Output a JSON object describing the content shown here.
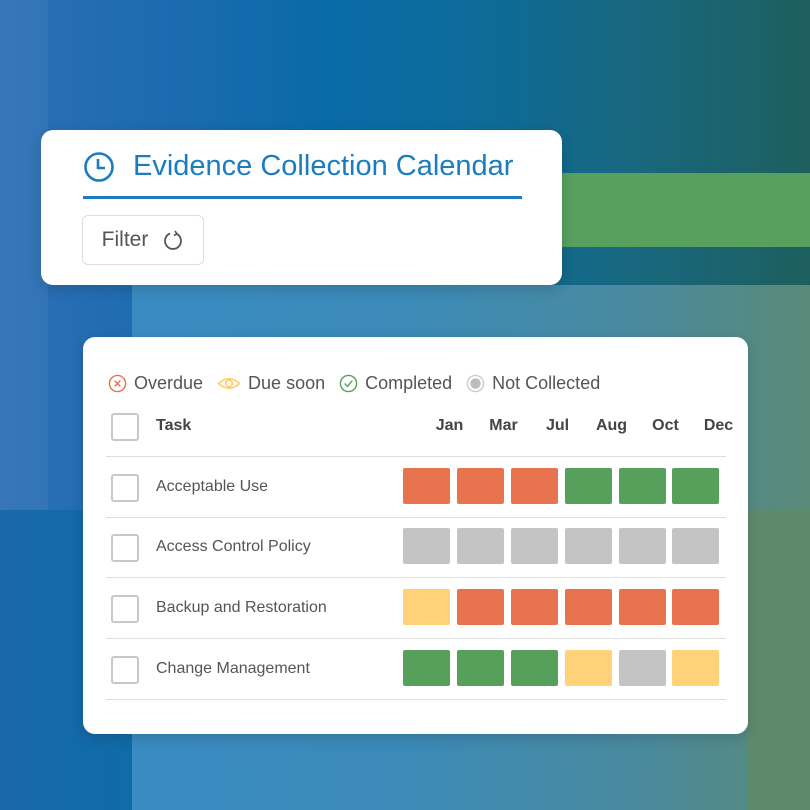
{
  "header": {
    "title": "Evidence Collection Calendar",
    "filter_label": "Filter",
    "icon": "clock-icon",
    "filter_icon": "refresh-icon"
  },
  "legend": [
    {
      "label": "Overdue",
      "icon": "x-circle-icon",
      "color": "#E8734F"
    },
    {
      "label": "Due soon",
      "icon": "eye-icon",
      "color": "#FFC85A"
    },
    {
      "label": "Completed",
      "icon": "check-circle-icon",
      "color": "#56A05C"
    },
    {
      "label": "Not Collected",
      "icon": "dot-circle-icon",
      "color": "#BDBDBD"
    }
  ],
  "status_colors": {
    "overdue": "#E8734F",
    "due_soon": "#FFD27A",
    "completed": "#56A05C",
    "not_collected": "#C4C4C4"
  },
  "table": {
    "task_header": "Task",
    "months": [
      "Jan",
      "Mar",
      "Jul",
      "Aug",
      "Oct",
      "Dec"
    ],
    "rows": [
      {
        "task": "Acceptable Use",
        "statuses": [
          "overdue",
          "overdue",
          "overdue",
          "completed",
          "completed",
          "completed"
        ]
      },
      {
        "task": "Access Control Policy",
        "statuses": [
          "not_collected",
          "not_collected",
          "not_collected",
          "not_collected",
          "not_collected",
          "not_collected"
        ]
      },
      {
        "task": "Backup and Restoration",
        "statuses": [
          "due_soon",
          "overdue",
          "overdue",
          "overdue",
          "overdue",
          "overdue"
        ]
      },
      {
        "task": "Change Management",
        "statuses": [
          "completed",
          "completed",
          "completed",
          "due_soon",
          "not_collected",
          "due_soon"
        ]
      }
    ]
  }
}
